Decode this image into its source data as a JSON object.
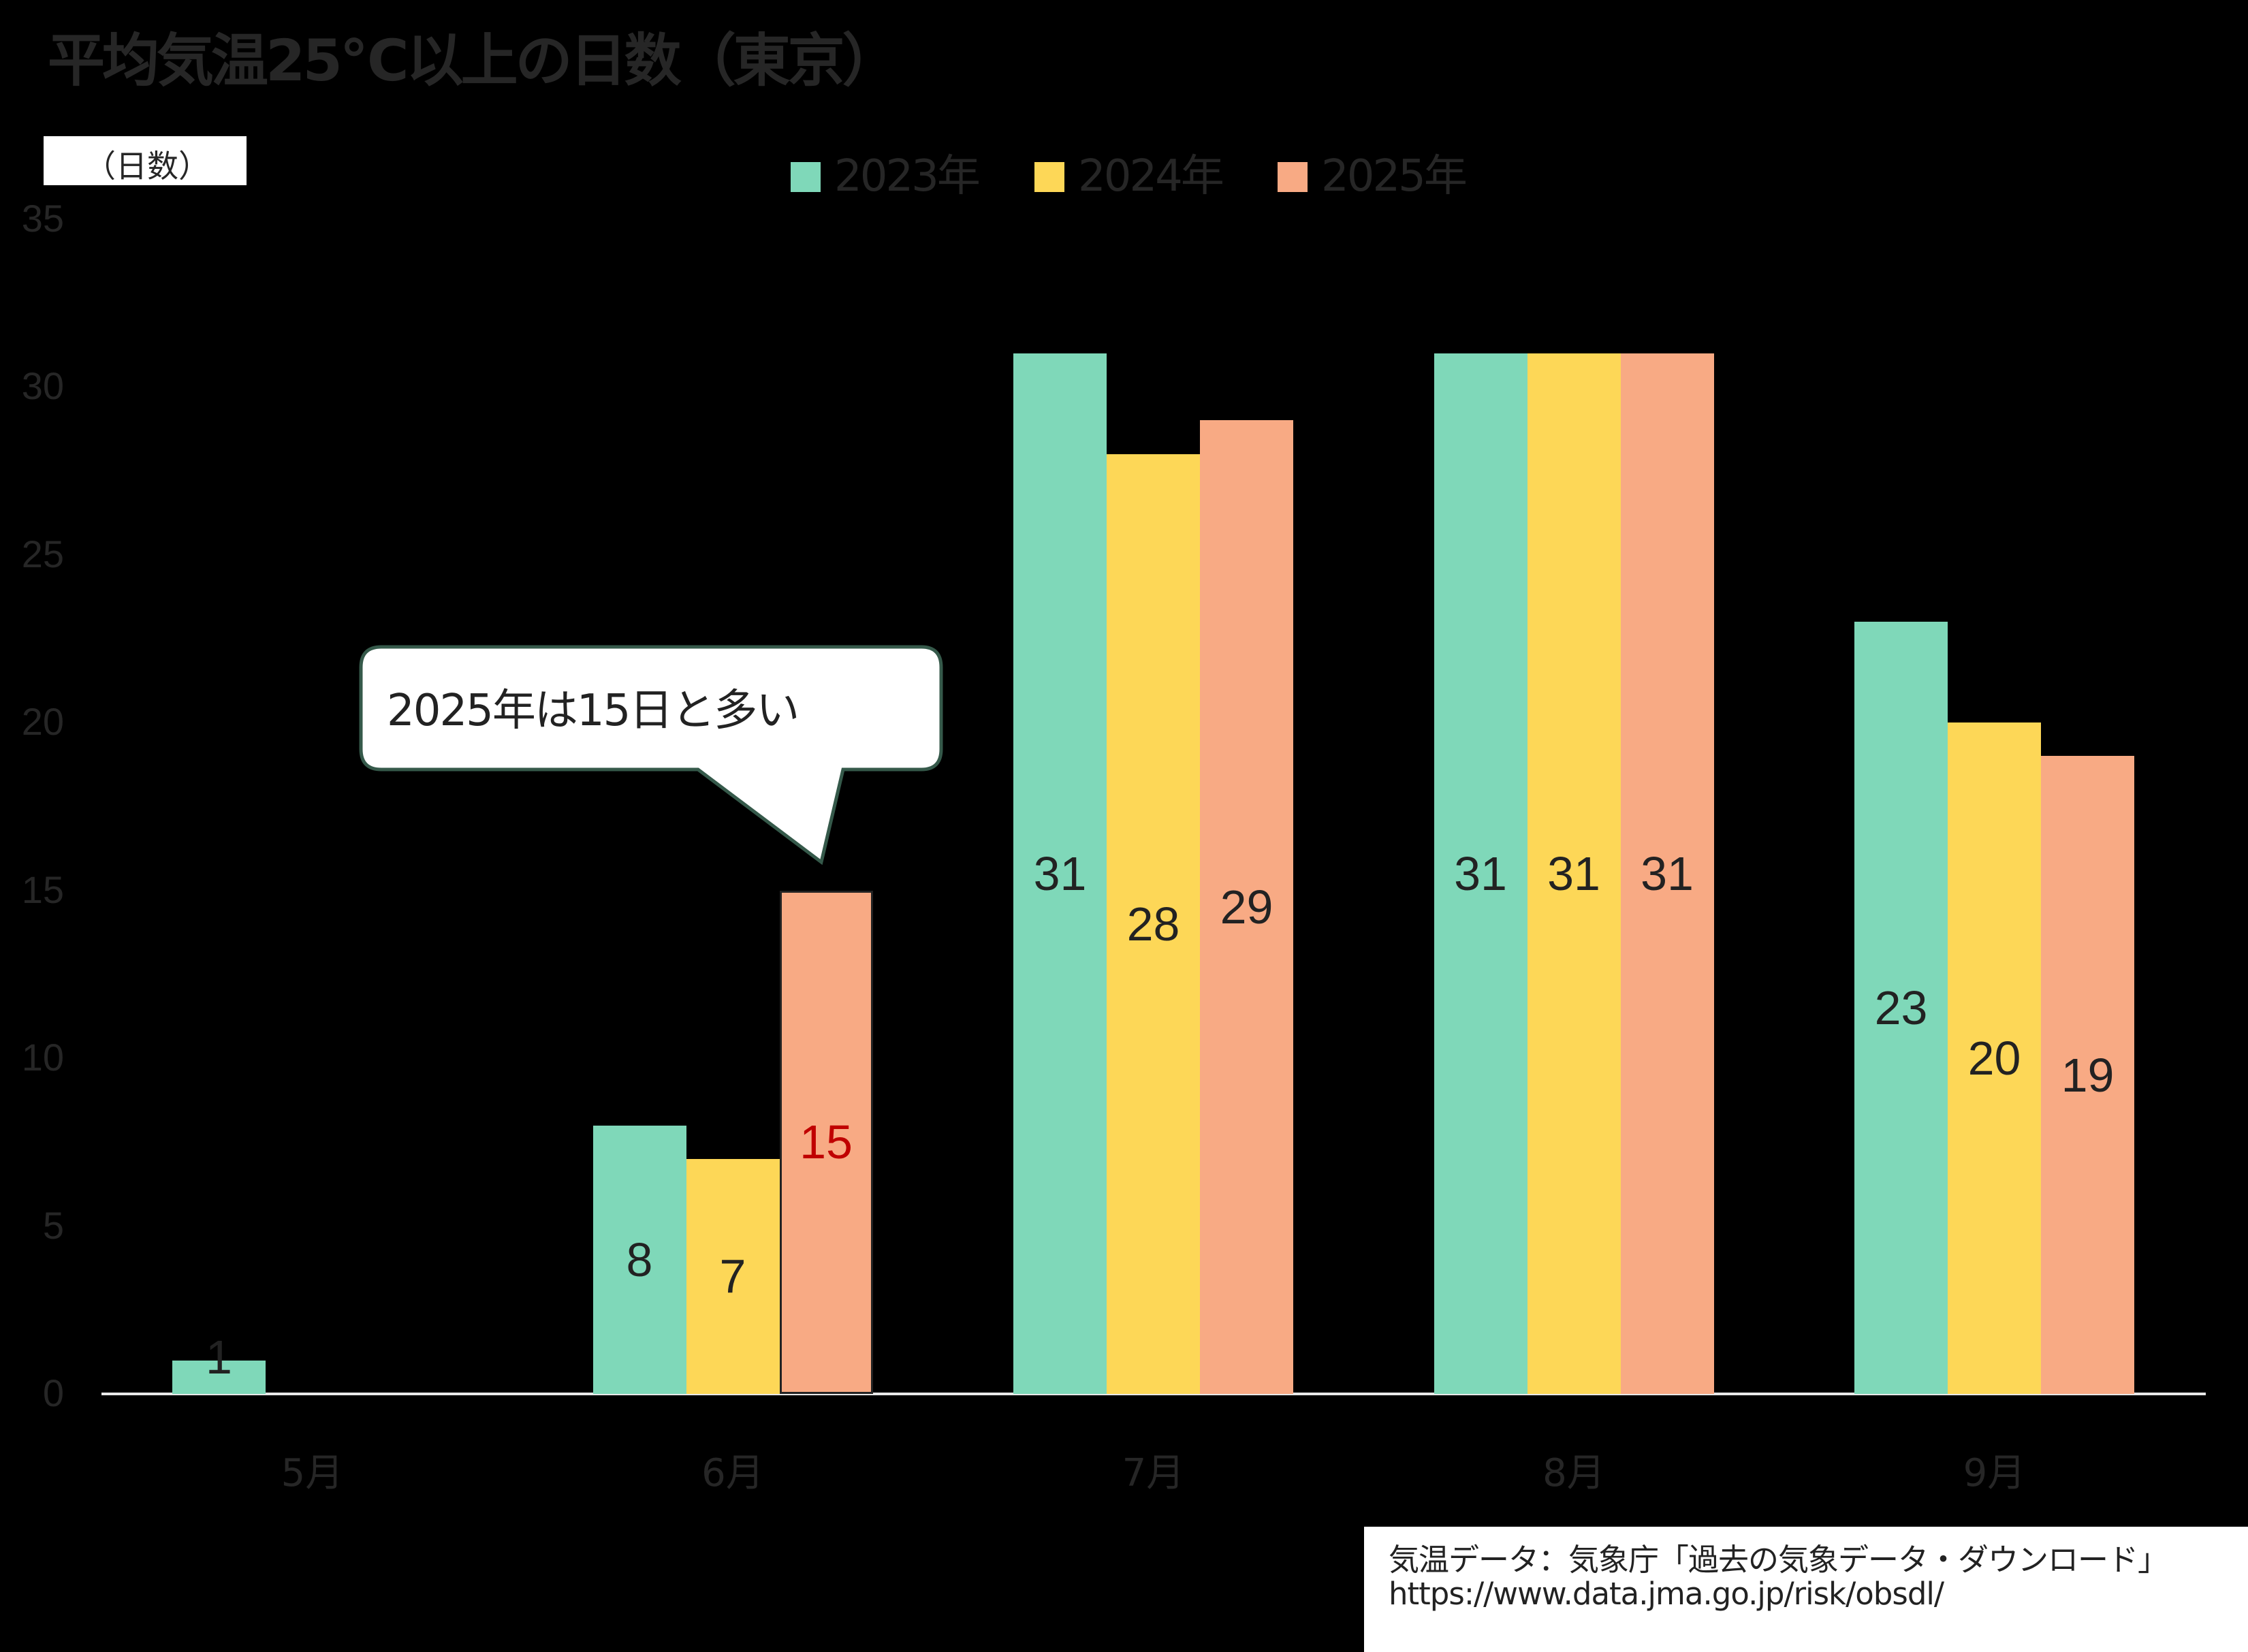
{
  "title": "平均気温25℃以上の日数（東京）",
  "unit_label": "（日数）",
  "legend": [
    {
      "label": "2023年",
      "color": "#7fd8b9"
    },
    {
      "label": "2024年",
      "color": "#fdd757"
    },
    {
      "label": "2025年",
      "color": "#f8aa84"
    }
  ],
  "y_ticks": [
    "0",
    "5",
    "10",
    "15",
    "20",
    "25",
    "30",
    "35"
  ],
  "x_ticks": [
    "5月",
    "6月",
    "7月",
    "8月",
    "9月"
  ],
  "callout": {
    "text": "2025年は15日と多い"
  },
  "source": {
    "line1": "気温データ：気象庁「過去の気象データ・ダウンロード」",
    "line2": "https://www.data.jma.go.jp/risk/obsdl/"
  },
  "chart_data": {
    "type": "bar",
    "title": "平均気温25℃以上の日数（東京）",
    "xlabel": "",
    "ylabel": "（日数）",
    "ylim": [
      0,
      35
    ],
    "grid": false,
    "legend_position": "top",
    "categories": [
      "5月",
      "6月",
      "7月",
      "8月",
      "9月"
    ],
    "series": [
      {
        "name": "2023年",
        "color": "#7fd8b9",
        "values": [
          1,
          8,
          31,
          31,
          23
        ]
      },
      {
        "name": "2024年",
        "color": "#fdd757",
        "values": [
          0,
          7,
          28,
          31,
          20
        ]
      },
      {
        "name": "2025年",
        "color": "#f8aa84",
        "values": [
          0,
          15,
          29,
          31,
          19
        ]
      }
    ],
    "annotations": [
      {
        "text": "2025年は15日と多い",
        "target": "6月 2025年",
        "highlight_color": "#c00000"
      }
    ]
  }
}
